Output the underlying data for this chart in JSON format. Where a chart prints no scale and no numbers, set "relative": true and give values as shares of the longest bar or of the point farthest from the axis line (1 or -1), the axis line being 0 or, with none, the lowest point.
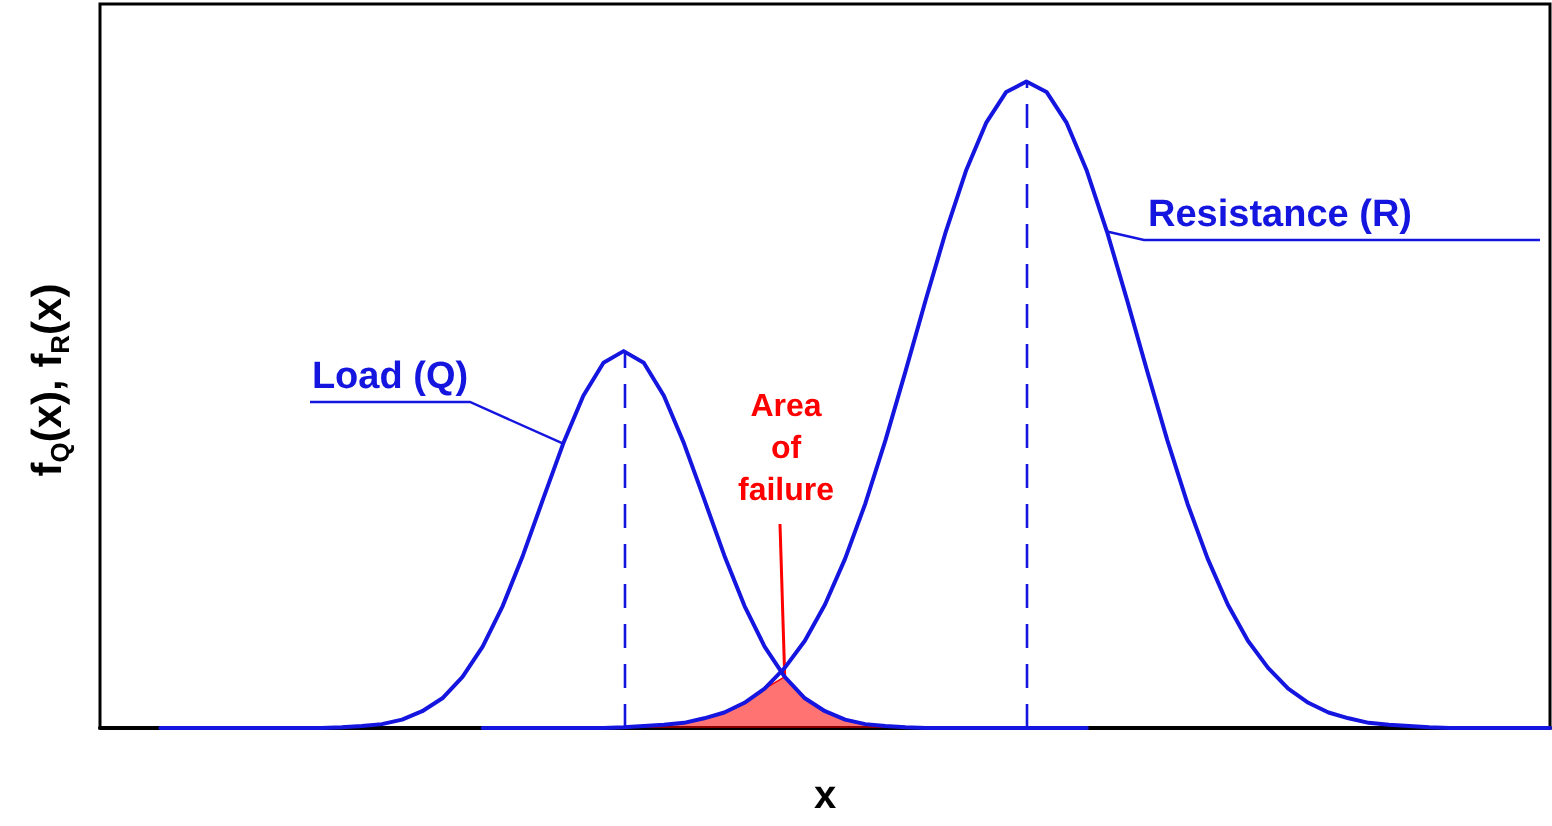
{
  "chart_data": {
    "type": "line",
    "relative": true,
    "xlabel": "x",
    "ylabel": "f$_{Q}$(x), f$_{R}$(x)",
    "annotations": [
      "Area of failure"
    ],
    "grid": false,
    "legend": false,
    "tick_labels": false,
    "marker": "none",
    "line_style": "solid",
    "categories": [
      null,
      null,
      null,
      null,
      null,
      null,
      null,
      null,
      null,
      null,
      null,
      null,
      null,
      null,
      null,
      null,
      null,
      null,
      null,
      null,
      null,
      null,
      null,
      null,
      null,
      null,
      null,
      null,
      null,
      null,
      null,
      null,
      null,
      null,
      null,
      null,
      null,
      null,
      null,
      null,
      null,
      null,
      null,
      null,
      null,
      null,
      null,
      null,
      null,
      null,
      null,
      null,
      null,
      null,
      null,
      null,
      null,
      null,
      null,
      null,
      null,
      null,
      null,
      null,
      null,
      null,
      null,
      null,
      null,
      null,
      null,
      null,
      null
    ],
    "series": [
      {
        "name": "Load (Q)",
        "color": "#1515e0",
        "values": [
          null,
          null,
          null,
          0,
          0,
          0,
          0,
          0,
          0,
          0,
          0,
          0,
          0.001,
          0.003,
          0.006,
          0.013,
          0.026,
          0.046,
          0.079,
          0.126,
          0.189,
          0.267,
          0.354,
          0.44,
          0.514,
          0.565,
          0.583,
          0.565,
          0.514,
          0.44,
          0.354,
          0.267,
          0.189,
          0.126,
          0.079,
          0.046,
          0.026,
          0.013,
          0.006,
          0.003,
          0.001,
          0,
          0,
          0,
          0,
          0,
          0,
          0,
          0,
          0,
          null,
          null,
          null,
          null,
          null,
          null,
          null,
          null,
          null,
          null,
          null,
          null,
          null,
          null,
          null,
          null,
          null,
          null,
          null,
          null,
          null,
          null,
          null
        ]
      },
      {
        "name": "Resistance (R)",
        "color": "#1515e0",
        "values": [
          null,
          null,
          null,
          null,
          null,
          null,
          null,
          null,
          null,
          null,
          null,
          null,
          null,
          null,
          null,
          null,
          null,
          null,
          null,
          0,
          0,
          0,
          0,
          0,
          0,
          0,
          0.001,
          0.003,
          0.005,
          0.008,
          0.015,
          0.024,
          0.039,
          0.061,
          0.093,
          0.135,
          0.191,
          0.262,
          0.347,
          0.445,
          0.552,
          0.662,
          0.768,
          0.862,
          0.936,
          0.984,
          1,
          0.984,
          0.936,
          0.862,
          0.768,
          0.662,
          0.552,
          0.445,
          0.347,
          0.262,
          0.191,
          0.135,
          0.093,
          0.061,
          0.039,
          0.024,
          0.015,
          0.008,
          0.005,
          0.003,
          0.001,
          0,
          0,
          0,
          0,
          0,
          0
        ]
      },
      {
        "type": "area",
        "color": "#ff0000",
        "values": [
          null,
          null,
          null,
          null,
          null,
          null,
          null,
          null,
          null,
          null,
          null,
          null,
          null,
          null,
          null,
          null,
          null,
          null,
          null,
          null,
          null,
          null,
          null,
          null,
          null,
          0,
          0.001,
          0.003,
          0.005,
          0.008,
          0.015,
          0.024,
          0.039,
          0.061,
          0.079,
          0.046,
          0.026,
          0.013,
          0.006,
          0.003,
          0.001,
          0,
          null,
          null,
          null,
          null,
          null,
          null,
          null,
          null,
          null,
          null,
          null,
          null,
          null,
          null,
          null,
          null,
          null,
          null,
          null,
          null,
          null,
          null,
          null,
          null,
          null,
          null,
          null,
          null,
          null,
          null,
          null
        ]
      }
    ]
  }
}
